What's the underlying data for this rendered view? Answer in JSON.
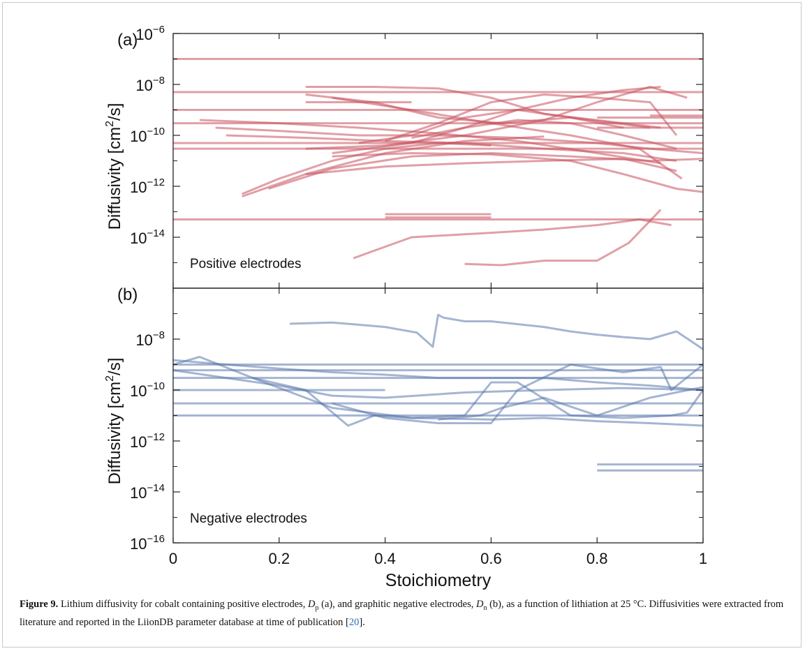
{
  "chart_data": [
    {
      "type": "line",
      "panel": "(a)",
      "annotation": "Positive electrodes",
      "xlabel": "Stoichiometry",
      "ylabel": "Diffusivity [cm²/s]",
      "xlim": [
        0,
        1
      ],
      "ylim": [
        1e-16,
        1e-06
      ],
      "yscale": "log",
      "color": "#c8505c",
      "xticks": [
        0,
        0.2,
        0.4,
        0.6,
        0.8,
        1
      ],
      "yticks": [
        1e-06,
        1e-08,
        1e-10,
        1e-12,
        1e-14
      ],
      "series": [
        {
          "x": [
            0,
            1
          ],
          "y": [
            1e-07,
            1e-07
          ]
        },
        {
          "x": [
            0,
            1
          ],
          "y": [
            5e-09,
            5e-09
          ]
        },
        {
          "x": [
            0,
            1
          ],
          "y": [
            1e-09,
            1e-09
          ]
        },
        {
          "x": [
            0,
            1
          ],
          "y": [
            3e-10,
            3e-10
          ]
        },
        {
          "x": [
            0,
            1
          ],
          "y": [
            5e-11,
            5e-11
          ]
        },
        {
          "x": [
            0,
            1
          ],
          "y": [
            3e-11,
            3e-11
          ]
        },
        {
          "x": [
            0,
            1
          ],
          "y": [
            5e-14,
            5e-14
          ]
        },
        {
          "x": [
            0.4,
            0.6
          ],
          "y": [
            8e-14,
            8e-14
          ]
        },
        {
          "x": [
            0.4,
            0.6
          ],
          "y": [
            6e-14,
            6e-14
          ]
        },
        {
          "x": [
            0.25,
            0.45
          ],
          "y": [
            2e-09,
            2e-09
          ]
        },
        {
          "x": [
            0.8,
            1
          ],
          "y": [
            5e-10,
            5e-10
          ]
        },
        {
          "x": [
            0.8,
            1
          ],
          "y": [
            2e-10,
            2e-10
          ]
        },
        {
          "x": [
            0.9,
            1
          ],
          "y": [
            6e-10,
            6e-10
          ]
        },
        {
          "x": [
            0.13,
            0.2,
            0.3,
            0.4,
            0.5,
            0.6
          ],
          "y": [
            5e-13,
            2e-12,
            1e-11,
            3e-11,
            5e-11,
            4e-11
          ]
        },
        {
          "x": [
            0.13,
            0.25,
            0.4,
            0.55,
            0.7
          ],
          "y": [
            4e-13,
            3e-12,
            2e-11,
            6e-11,
            9e-11
          ]
        },
        {
          "x": [
            0.18,
            0.3,
            0.45,
            0.6,
            0.75,
            0.9,
            1
          ],
          "y": [
            8e-13,
            5e-12,
            1.5e-11,
            2e-11,
            1.5e-11,
            1e-11,
            1.2e-11
          ]
        },
        {
          "x": [
            0.25,
            0.4,
            0.55,
            0.7,
            0.85,
            0.95
          ],
          "y": [
            3e-12,
            6e-12,
            8e-12,
            1e-11,
            1.2e-11,
            4e-12
          ]
        },
        {
          "x": [
            0.3,
            0.45,
            0.6,
            0.75,
            0.85,
            0.95,
            1
          ],
          "y": [
            1.5e-11,
            2e-11,
            1.8e-11,
            1e-11,
            3e-12,
            8e-13,
            6e-13
          ]
        },
        {
          "x": [
            0.25,
            0.38,
            0.5,
            0.6,
            0.7,
            0.85,
            0.92
          ],
          "y": [
            8e-09,
            8e-09,
            7e-09,
            3e-09,
            7e-10,
            3e-10,
            2e-10
          ]
        },
        {
          "x": [
            0.25,
            0.38,
            0.5,
            0.62,
            0.75,
            0.9
          ],
          "y": [
            4e-09,
            2e-09,
            5e-10,
            3e-10,
            5e-10,
            2e-10
          ]
        },
        {
          "x": [
            0.3,
            0.45,
            0.6,
            0.75,
            0.88,
            0.96
          ],
          "y": [
            3e-09,
            1e-09,
            3e-10,
            1e-10,
            3e-11,
            2e-12
          ]
        },
        {
          "x": [
            0.08,
            0.2,
            0.35,
            0.5,
            0.65,
            0.8,
            0.9,
            1
          ],
          "y": [
            2e-10,
            1.5e-10,
            1e-10,
            1e-10,
            8e-11,
            5e-11,
            3e-11,
            2e-11
          ]
        },
        {
          "x": [
            0.05,
            0.2,
            0.35,
            0.5,
            0.65,
            0.8,
            0.92
          ],
          "y": [
            4e-10,
            3e-10,
            2e-10,
            1.2e-10,
            6e-11,
            2e-11,
            8e-12
          ]
        },
        {
          "x": [
            0.1,
            0.25,
            0.4,
            0.55,
            0.7,
            0.85,
            0.95
          ],
          "y": [
            1e-10,
            8e-11,
            6e-11,
            5e-11,
            3e-11,
            2e-11,
            1e-11
          ]
        },
        {
          "x": [
            0.25,
            0.4,
            0.55,
            0.7,
            0.8,
            0.9,
            0.97
          ],
          "y": [
            3e-11,
            4e-11,
            1e-10,
            4e-10,
            2e-09,
            8e-09,
            3e-09
          ]
        },
        {
          "x": [
            0.3,
            0.45,
            0.55,
            0.65,
            0.75,
            0.85,
            0.92
          ],
          "y": [
            2e-11,
            5e-11,
            2e-10,
            1e-09,
            3e-09,
            6e-09,
            8e-09
          ]
        },
        {
          "x": [
            0.4,
            0.5,
            0.6,
            0.7,
            0.8,
            0.9,
            0.95
          ],
          "y": [
            6e-11,
            3e-10,
            2e-09,
            4e-09,
            3e-09,
            2e-09,
            1e-10
          ]
        },
        {
          "x": [
            0.35,
            0.45,
            0.55,
            0.65,
            0.75,
            0.85
          ],
          "y": [
            5e-11,
            1e-10,
            5e-10,
            1e-09,
            5e-10,
            2e-10
          ]
        },
        {
          "x": [
            0.45,
            0.55,
            0.65,
            0.75,
            0.85,
            0.95
          ],
          "y": [
            8e-11,
            2e-10,
            4e-10,
            3e-10,
            1e-10,
            3e-11
          ]
        },
        {
          "x": [
            0.34,
            0.38,
            0.45,
            0.6,
            0.7,
            0.8,
            0.88,
            0.94
          ],
          "y": [
            1.5e-15,
            3e-15,
            1e-14,
            1.5e-14,
            2e-14,
            3e-14,
            5e-14,
            3e-14
          ]
        },
        {
          "x": [
            0.55,
            0.62,
            0.7,
            0.8,
            0.86,
            0.92
          ],
          "y": [
            9e-16,
            8e-16,
            1.2e-15,
            1.2e-15,
            6e-15,
            1.2e-13
          ]
        }
      ]
    },
    {
      "type": "line",
      "panel": "(b)",
      "annotation": "Negative electrodes",
      "xlabel": "Stoichiometry",
      "ylabel": "Diffusivity [cm²/s]",
      "xlim": [
        0,
        1
      ],
      "ylim": [
        1e-16,
        1e-06
      ],
      "yscale": "log",
      "color": "#5b78ad",
      "xticks": [
        0,
        0.2,
        0.4,
        0.6,
        0.8,
        1
      ],
      "yticks": [
        1e-08,
        1e-10,
        1e-12,
        1e-14,
        1e-16
      ],
      "series": [
        {
          "x": [
            0,
            1
          ],
          "y": [
            1e-09,
            1e-09
          ]
        },
        {
          "x": [
            0,
            1
          ],
          "y": [
            6e-10,
            6e-10
          ]
        },
        {
          "x": [
            0,
            1
          ],
          "y": [
            3e-10,
            3e-10
          ]
        },
        {
          "x": [
            0,
            1
          ],
          "y": [
            3e-11,
            3e-11
          ]
        },
        {
          "x": [
            0,
            1
          ],
          "y": [
            1e-11,
            1e-11
          ]
        },
        {
          "x": [
            0,
            0.4
          ],
          "y": [
            1e-10,
            1e-10
          ]
        },
        {
          "x": [
            0.8,
            1
          ],
          "y": [
            1.2e-13,
            1.2e-13
          ]
        },
        {
          "x": [
            0.8,
            1
          ],
          "y": [
            7e-14,
            7e-14
          ]
        },
        {
          "x": [
            0.22,
            0.3,
            0.4,
            0.46,
            0.49,
            0.5,
            0.51,
            0.55,
            0.6,
            0.7,
            0.75,
            0.8,
            0.85,
            0.9,
            0.95,
            1
          ],
          "y": [
            4e-08,
            4.5e-08,
            3e-08,
            1.8e-08,
            5e-09,
            9e-08,
            7e-08,
            5e-08,
            5e-08,
            3e-08,
            2e-08,
            1.5e-08,
            1.2e-08,
            1e-08,
            2e-08,
            4e-09
          ]
        },
        {
          "x": [
            0,
            0.1,
            0.2,
            0.3,
            0.4,
            0.5,
            0.6,
            0.7,
            0.8,
            0.9,
            1
          ],
          "y": [
            1.5e-09,
            1e-09,
            7e-10,
            5e-10,
            4e-10,
            3e-10,
            3e-10,
            3e-10,
            2e-10,
            1.5e-10,
            1e-10
          ]
        },
        {
          "x": [
            0,
            0.05,
            0.15,
            0.25,
            0.33,
            0.38,
            0.45,
            0.55,
            0.6,
            0.65,
            0.75,
            0.85,
            0.94,
            0.97,
            1
          ],
          "y": [
            1e-09,
            2e-09,
            3e-10,
            1e-10,
            4e-12,
            1e-11,
            8e-12,
            1e-11,
            2e-10,
            2e-10,
            1e-11,
            8e-12,
            1e-11,
            1.3e-11,
            1e-10
          ]
        },
        {
          "x": [
            0,
            0.1,
            0.2,
            0.3,
            0.4,
            0.55,
            0.7,
            0.85,
            1
          ],
          "y": [
            6e-10,
            3e-10,
            1.5e-10,
            6e-11,
            5e-11,
            8e-11,
            1e-10,
            1.2e-10,
            1e-10
          ]
        },
        {
          "x": [
            0.3,
            0.4,
            0.5,
            0.6,
            0.65,
            0.75,
            0.85,
            0.92,
            0.94,
            1
          ],
          "y": [
            3e-11,
            8e-12,
            5e-12,
            5e-12,
            1e-10,
            1e-09,
            5e-10,
            8e-10,
            1e-10,
            1e-09
          ]
        },
        {
          "x": [
            0.15,
            0.3,
            0.45,
            0.6,
            0.7,
            0.8,
            0.9,
            1
          ],
          "y": [
            3e-10,
            2e-11,
            8e-12,
            7e-12,
            8e-12,
            6e-12,
            5e-12,
            4e-12
          ]
        },
        {
          "x": [
            0.5,
            0.58,
            0.62,
            0.7,
            0.8,
            0.9,
            1
          ],
          "y": [
            7e-12,
            1e-11,
            2e-11,
            5e-11,
            1e-11,
            5e-11,
            1.3e-10
          ]
        }
      ]
    }
  ],
  "caption": {
    "label": "Figure 9.",
    "text1": "Lithium diffusivity for cobalt containing positive electrodes, ",
    "dp": "D",
    "dp_sub": "p",
    "text2": " (a), and graphitic negative electrodes, ",
    "dn": "D",
    "dn_sub": "n",
    "text3": " (b), as a function of lithiation at 25 °C. Diffusivities were extracted from literature and reported in the LiionDB parameter database at time of publication [",
    "ref": "20",
    "text4": "]."
  }
}
